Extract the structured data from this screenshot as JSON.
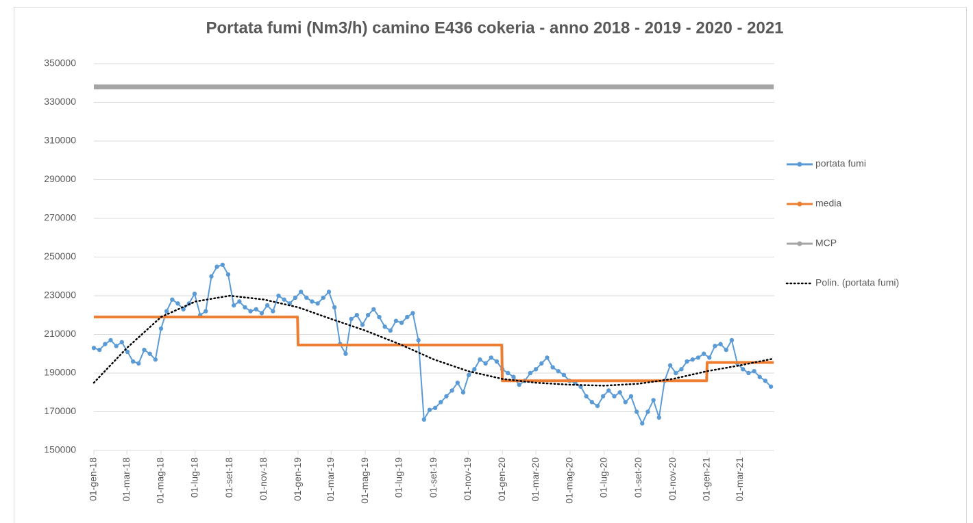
{
  "chart_data": {
    "type": "line",
    "title": "Portata fumi (Nm3/h) camino E436 cokeria - anno 2018 - 2019 - 2020 - 2021",
    "xlim": [
      "2018-01-01",
      "2021-05-01"
    ],
    "xticks": [
      {
        "value": "2018-01-01",
        "label": "01-gen-18"
      },
      {
        "value": "2018-03-01",
        "label": "01-mar-18"
      },
      {
        "value": "2018-05-01",
        "label": "01-mag-18"
      },
      {
        "value": "2018-07-01",
        "label": "01-lug-18"
      },
      {
        "value": "2018-09-01",
        "label": "01-set-18"
      },
      {
        "value": "2018-11-01",
        "label": "01-nov-18"
      },
      {
        "value": "2019-01-01",
        "label": "01-gen-19"
      },
      {
        "value": "2019-03-01",
        "label": "01-mar-19"
      },
      {
        "value": "2019-05-01",
        "label": "01-mag-19"
      },
      {
        "value": "2019-07-01",
        "label": "01-lug-19"
      },
      {
        "value": "2019-09-01",
        "label": "01-set-19"
      },
      {
        "value": "2019-11-01",
        "label": "01-nov-19"
      },
      {
        "value": "2020-01-01",
        "label": "01-gen-20"
      },
      {
        "value": "2020-03-01",
        "label": "01-mar-20"
      },
      {
        "value": "2020-05-01",
        "label": "01-mag-20"
      },
      {
        "value": "2020-07-01",
        "label": "01-lug-20"
      },
      {
        "value": "2020-09-01",
        "label": "01-set-20"
      },
      {
        "value": "2020-11-01",
        "label": "01-nov-20"
      },
      {
        "value": "2021-01-01",
        "label": "01-gen-21"
      },
      {
        "value": "2021-03-01",
        "label": "01-mar-21"
      }
    ],
    "ylim": [
      150000,
      350000
    ],
    "yticks": [
      150000,
      170000,
      190000,
      210000,
      230000,
      250000,
      270000,
      290000,
      310000,
      330000,
      350000
    ],
    "grid": true,
    "legend": "right",
    "series": [
      {
        "name": "portata fumi",
        "color": "#5b9bd5",
        "style": "solid",
        "width": 2,
        "markers": true,
        "x": [
          "2018-01-01",
          "2018-01-11",
          "2018-01-21",
          "2018-01-31",
          "2018-02-10",
          "2018-02-20",
          "2018-03-02",
          "2018-03-12",
          "2018-03-22",
          "2018-04-01",
          "2018-04-11",
          "2018-04-21",
          "2018-05-01",
          "2018-05-11",
          "2018-05-21",
          "2018-05-31",
          "2018-06-10",
          "2018-06-20",
          "2018-06-30",
          "2018-07-10",
          "2018-07-20",
          "2018-07-30",
          "2018-08-09",
          "2018-08-19",
          "2018-08-29",
          "2018-09-08",
          "2018-09-18",
          "2018-09-28",
          "2018-10-08",
          "2018-10-18",
          "2018-10-28",
          "2018-11-07",
          "2018-11-17",
          "2018-11-27",
          "2018-12-07",
          "2018-12-17",
          "2018-12-27",
          "2019-01-06",
          "2019-01-16",
          "2019-01-26",
          "2019-02-05",
          "2019-02-15",
          "2019-02-25",
          "2019-03-07",
          "2019-03-17",
          "2019-03-27",
          "2019-04-06",
          "2019-04-16",
          "2019-04-26",
          "2019-05-06",
          "2019-05-16",
          "2019-05-26",
          "2019-06-05",
          "2019-06-15",
          "2019-06-25",
          "2019-07-05",
          "2019-07-15",
          "2019-07-25",
          "2019-08-04",
          "2019-08-14",
          "2019-08-24",
          "2019-09-03",
          "2019-09-13",
          "2019-09-23",
          "2019-10-03",
          "2019-10-13",
          "2019-10-23",
          "2019-11-02",
          "2019-11-12",
          "2019-11-22",
          "2019-12-02",
          "2019-12-12",
          "2019-12-22",
          "2020-01-01",
          "2020-01-11",
          "2020-01-21",
          "2020-01-31",
          "2020-02-10",
          "2020-02-20",
          "2020-03-01",
          "2020-03-11",
          "2020-03-21",
          "2020-03-31",
          "2020-04-10",
          "2020-04-20",
          "2020-04-30",
          "2020-05-10",
          "2020-05-20",
          "2020-05-30",
          "2020-06-09",
          "2020-06-19",
          "2020-06-29",
          "2020-07-09",
          "2020-07-19",
          "2020-07-29",
          "2020-08-08",
          "2020-08-18",
          "2020-08-28",
          "2020-09-07",
          "2020-09-17",
          "2020-09-27",
          "2020-10-07",
          "2020-10-17",
          "2020-10-27",
          "2020-11-06",
          "2020-11-16",
          "2020-11-26",
          "2020-12-06",
          "2020-12-16",
          "2020-12-26",
          "2021-01-05",
          "2021-01-15",
          "2021-01-25",
          "2021-02-04",
          "2021-02-14",
          "2021-02-24",
          "2021-03-06",
          "2021-03-16",
          "2021-03-26",
          "2021-04-05",
          "2021-04-15",
          "2021-04-25"
        ],
        "values": [
          203000,
          202000,
          205000,
          207000,
          204000,
          206000,
          201000,
          196000,
          195000,
          202000,
          200000,
          197000,
          213000,
          222000,
          228000,
          226000,
          223000,
          226000,
          231000,
          220000,
          222000,
          240000,
          245000,
          246000,
          241000,
          225000,
          227000,
          224000,
          222000,
          223000,
          221000,
          225000,
          222000,
          230000,
          228000,
          226000,
          229000,
          232000,
          229000,
          227000,
          226000,
          229000,
          232000,
          224000,
          205000,
          200000,
          218000,
          220000,
          215000,
          220000,
          223000,
          219000,
          214000,
          212000,
          217000,
          216000,
          219000,
          221000,
          207000,
          166000,
          171000,
          172000,
          175000,
          178000,
          181000,
          185000,
          180000,
          189000,
          192000,
          197000,
          195000,
          198000,
          196000,
          192000,
          190000,
          188000,
          184000,
          186000,
          190000,
          192000,
          195000,
          198000,
          193000,
          191000,
          189000,
          186000,
          185000,
          183000,
          178000,
          175000,
          173000,
          178000,
          181000,
          178000,
          180000,
          175000,
          178000,
          170000,
          164000,
          170000,
          176000,
          167000,
          186000,
          194000,
          190000,
          192000,
          196000,
          197000,
          198000,
          200000,
          198000,
          204000,
          205000,
          202000,
          207000,
          195000,
          192000,
          190000,
          191000,
          188000,
          186000,
          183000
        ]
      },
      {
        "name": "media",
        "color": "#ed7d31",
        "style": "solid",
        "width": 4,
        "markers": false,
        "x": [
          "2018-01-01",
          "2018-12-31",
          "2019-01-01",
          "2019-12-31",
          "2020-01-01",
          "2020-12-31",
          "2021-01-01",
          "2021-04-30"
        ],
        "values": [
          219000,
          219000,
          204500,
          204500,
          186000,
          186000,
          195500,
          195500
        ]
      },
      {
        "name": "MCP",
        "color": "#a5a5a5",
        "style": "solid",
        "width": 7,
        "markers": false,
        "x": [
          "2018-01-01",
          "2021-04-30"
        ],
        "values": [
          338000,
          338000
        ]
      },
      {
        "name": "Polin. (portata fumi)",
        "color": "#000000",
        "style": "dotted",
        "width": 2.5,
        "markers": false,
        "x": [
          "2018-01-01",
          "2018-03-01",
          "2018-05-01",
          "2018-07-01",
          "2018-09-01",
          "2018-11-01",
          "2019-01-01",
          "2019-03-01",
          "2019-05-01",
          "2019-07-01",
          "2019-09-01",
          "2019-11-01",
          "2020-01-01",
          "2020-03-01",
          "2020-05-01",
          "2020-07-01",
          "2020-09-01",
          "2020-11-01",
          "2021-01-01",
          "2021-03-01",
          "2021-04-30"
        ],
        "values": [
          185000,
          203000,
          219000,
          227000,
          230000,
          228000,
          224000,
          218000,
          212000,
          205000,
          197000,
          191000,
          187000,
          185000,
          184000,
          183500,
          184500,
          187000,
          191000,
          194000,
          197500
        ]
      }
    ]
  }
}
